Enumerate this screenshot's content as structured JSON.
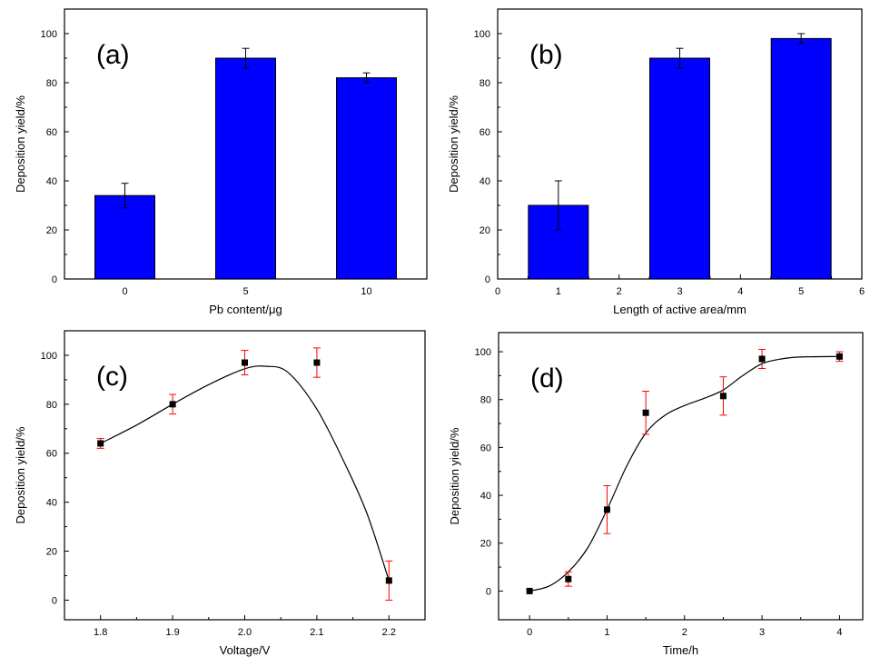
{
  "chart_data": [
    {
      "type": "bar",
      "panel_label": "(a)",
      "xlabel": "Pb content/μg",
      "ylabel": "Deposition yield/%",
      "ylim": [
        0,
        110
      ],
      "yticks": [
        0,
        20,
        40,
        60,
        80,
        100
      ],
      "categories": [
        "0",
        "5",
        "10"
      ],
      "values": [
        34,
        90,
        82
      ],
      "errors": [
        5,
        4,
        2
      ],
      "bar_color": "#0000ff",
      "error_color": "#000000"
    },
    {
      "type": "bar",
      "panel_label": "(b)",
      "xlabel": "Length of active area/mm",
      "ylabel": "Deposition yield/%",
      "xlim": [
        0,
        6
      ],
      "xticks": [
        0,
        1,
        2,
        3,
        4,
        5,
        6
      ],
      "ylim": [
        0,
        110
      ],
      "yticks": [
        0,
        20,
        40,
        60,
        80,
        100
      ],
      "x": [
        1,
        3,
        5
      ],
      "values": [
        30,
        90,
        98
      ],
      "errors": [
        10,
        4,
        2
      ],
      "bar_color": "#0000ff",
      "error_color": "#000000"
    },
    {
      "type": "scatter",
      "panel_label": "(c)",
      "xlabel": "Voltage/V",
      "ylabel": "Deposition yield/%",
      "xlim": [
        1.75,
        2.25
      ],
      "xticks": [
        "1.8",
        "1.9",
        "2.0",
        "2.1",
        "2.2"
      ],
      "ylim": [
        -8,
        110
      ],
      "yticks": [
        0,
        20,
        40,
        60,
        80,
        100
      ],
      "x": [
        1.8,
        1.9,
        2.0,
        2.1,
        2.2
      ],
      "y": [
        64,
        80,
        97,
        97,
        8
      ],
      "errors": [
        2,
        4,
        5,
        6,
        8
      ],
      "fit_curve": [
        [
          1.8,
          64
        ],
        [
          1.85,
          71.5
        ],
        [
          1.9,
          80
        ],
        [
          1.95,
          88
        ],
        [
          2.0,
          94.5
        ],
        [
          2.03,
          95.5
        ],
        [
          2.06,
          93
        ],
        [
          2.1,
          78
        ],
        [
          2.14,
          55
        ],
        [
          2.17,
          35
        ],
        [
          2.2,
          8
        ]
      ],
      "marker_color": "#000000",
      "error_color": "#ff0000"
    },
    {
      "type": "scatter",
      "panel_label": "(d)",
      "xlabel": "Time/h",
      "ylabel": "Deposition yield/%",
      "xlim": [
        -0.4,
        4.3
      ],
      "xticks": [
        0,
        1,
        2,
        3,
        4
      ],
      "ylim": [
        -12,
        108
      ],
      "yticks": [
        0,
        20,
        40,
        60,
        80,
        100
      ],
      "x": [
        0,
        0.5,
        1,
        1.5,
        2.5,
        3,
        4
      ],
      "y": [
        0,
        5,
        34,
        74.5,
        81.5,
        97,
        98
      ],
      "errors": [
        0,
        3,
        10,
        9,
        8,
        4,
        2
      ],
      "fit_curve": [
        [
          0,
          0
        ],
        [
          0.25,
          2
        ],
        [
          0.5,
          8
        ],
        [
          0.75,
          18
        ],
        [
          1,
          34
        ],
        [
          1.25,
          52
        ],
        [
          1.5,
          66
        ],
        [
          1.75,
          73.5
        ],
        [
          2,
          77.5
        ],
        [
          2.25,
          80.5
        ],
        [
          2.5,
          84
        ],
        [
          2.75,
          90
        ],
        [
          3,
          95
        ],
        [
          3.25,
          97
        ],
        [
          3.5,
          97.8
        ],
        [
          4,
          98
        ]
      ],
      "marker_color": "#000000",
      "error_color": "#ff0000"
    }
  ]
}
